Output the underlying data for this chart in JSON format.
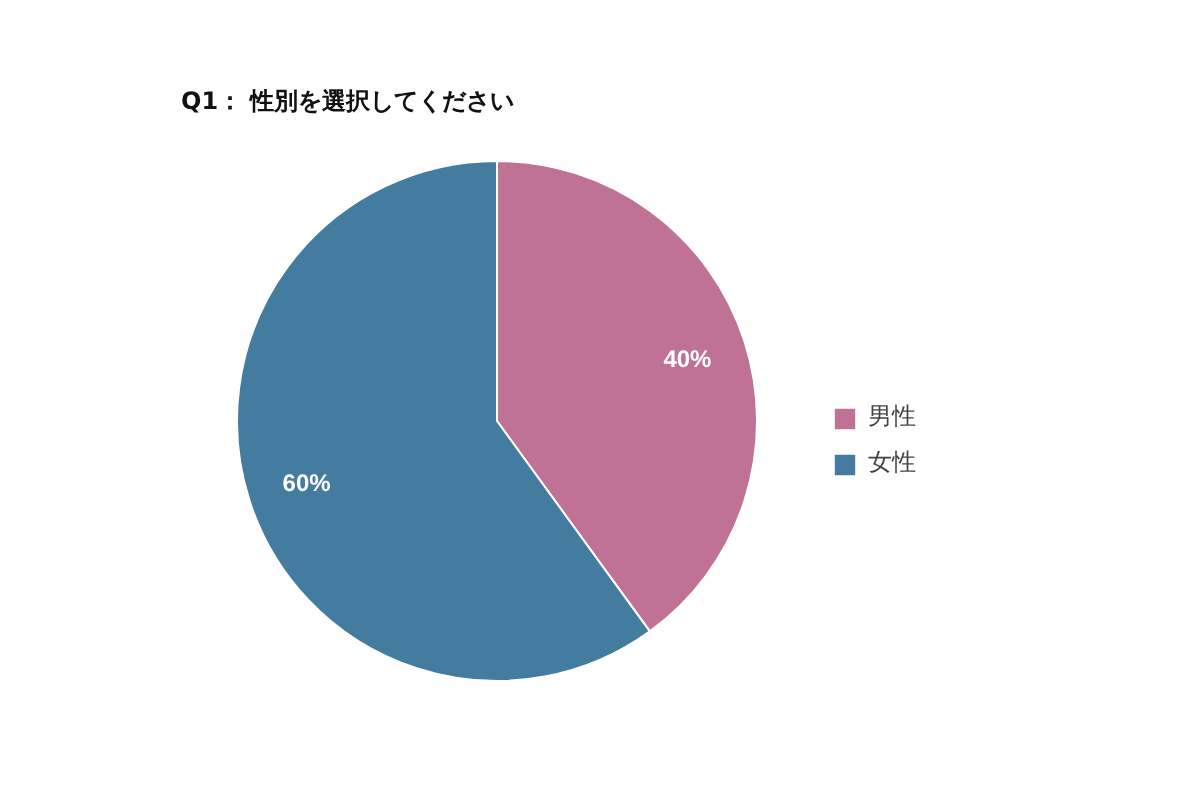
{
  "chart_data": {
    "type": "pie",
    "title": "Q1： 性別を選択してください",
    "categories": [
      "男性",
      "女性"
    ],
    "values": [
      40,
      60
    ],
    "colors": [
      "#c07296",
      "#447ca0"
    ],
    "value_labels": [
      "40%",
      "60%"
    ],
    "legend": "right"
  }
}
